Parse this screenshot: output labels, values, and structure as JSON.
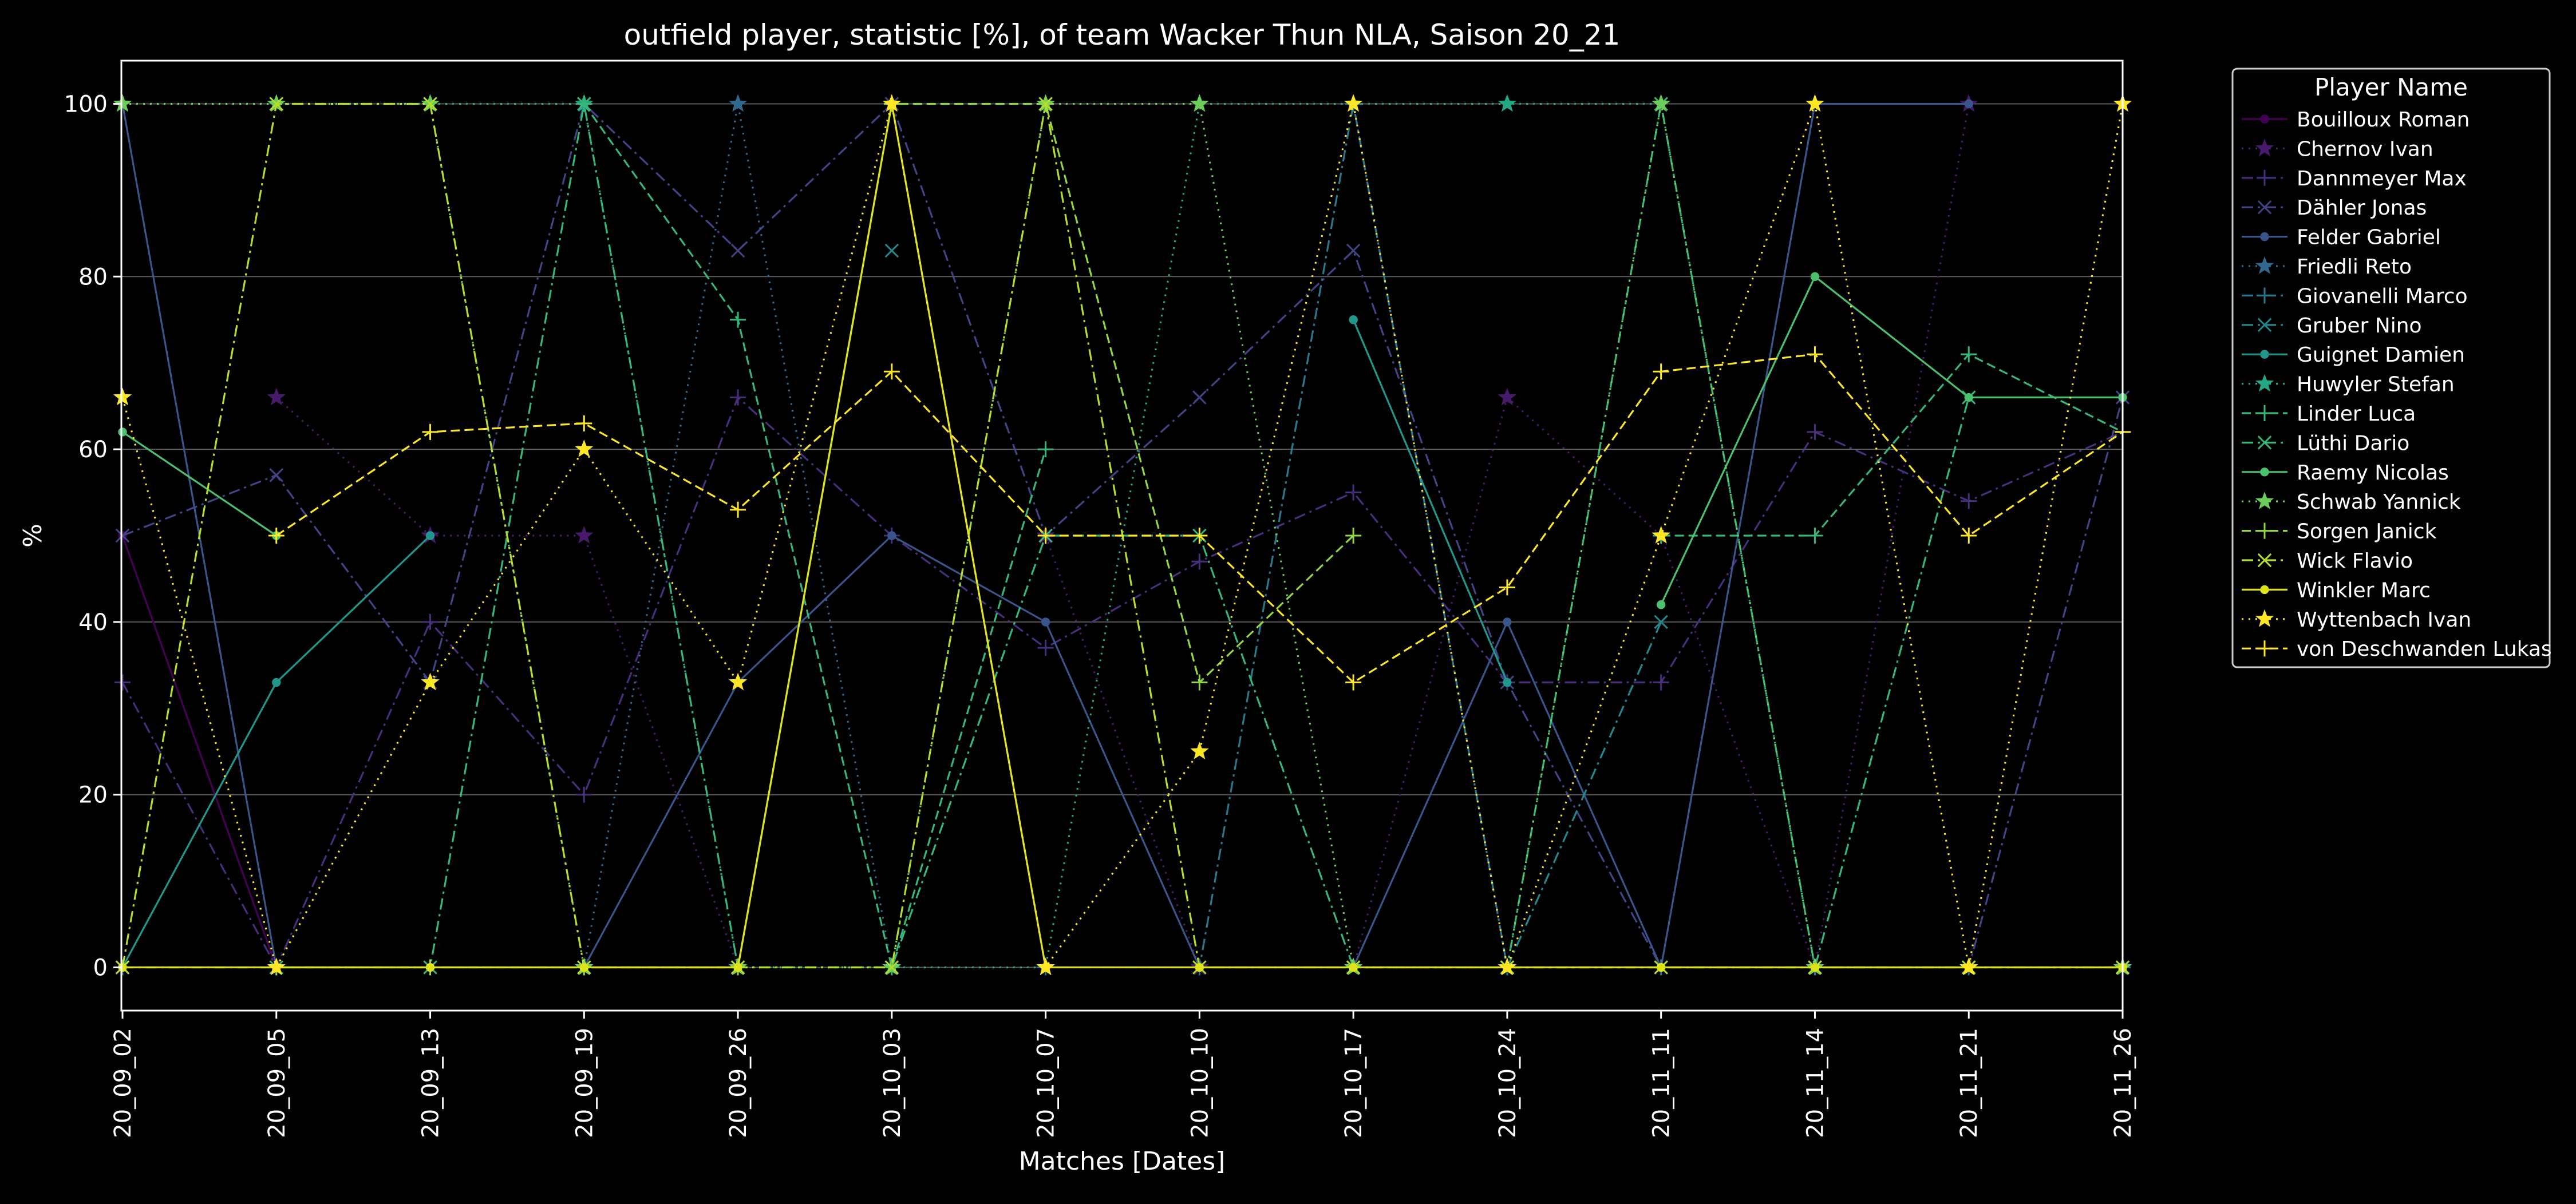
{
  "chart_data": {
    "type": "line",
    "title": "outfield player, statistic [%], of team Wacker Thun NLA, Saison 20_21",
    "xlabel": "Matches [Dates]",
    "ylabel": "%",
    "ylim": [
      -5,
      105
    ],
    "yticks": [
      0,
      20,
      40,
      60,
      80,
      100
    ],
    "grid": "horizontal",
    "legend_placement": "outside-right",
    "legend_title": "Player Name",
    "categories": [
      "20_09_02",
      "20_09_05",
      "20_09_13",
      "20_09_19",
      "20_09_26",
      "20_10_03",
      "20_10_07",
      "20_10_10",
      "20_10_17",
      "20_10_24",
      "20_11_11",
      "20_11_14",
      "20_11_21",
      "20_11_26"
    ],
    "series": [
      {
        "name": "Bouilloux Roman",
        "color": "#440154",
        "marker": "circle",
        "dash": "solid",
        "values": [
          50,
          0,
          null,
          null,
          null,
          null,
          null,
          null,
          null,
          null,
          null,
          null,
          null,
          null
        ]
      },
      {
        "name": "Chernov Ivan",
        "color": "#481a6c",
        "marker": "star",
        "dash": "dotted",
        "values": [
          null,
          66,
          50,
          50,
          0,
          null,
          50,
          0,
          0,
          66,
          50,
          0,
          100,
          null
        ]
      },
      {
        "name": "Dannmeyer Max",
        "color": "#472f7d",
        "marker": "plus",
        "dash": "dashdot",
        "values": [
          33,
          0,
          40,
          20,
          66,
          50,
          37,
          47,
          55,
          33,
          33,
          62,
          54,
          62
        ]
      },
      {
        "name": "Dähler Jonas",
        "color": "#414487",
        "marker": "x",
        "dash": "dashdot",
        "values": [
          50,
          57,
          33,
          100,
          83,
          100,
          50,
          66,
          83,
          33,
          0,
          0,
          0,
          66
        ]
      },
      {
        "name": "Felder Gabriel",
        "color": "#39568c",
        "marker": "circle",
        "dash": "solid",
        "values": [
          100,
          0,
          0,
          0,
          33,
          50,
          40,
          0,
          0,
          40,
          0,
          100,
          100,
          null
        ]
      },
      {
        "name": "Friedli Reto",
        "color": "#31688e",
        "marker": "star",
        "dash": "dotted",
        "values": [
          null,
          null,
          null,
          0,
          100,
          0,
          null,
          null,
          null,
          null,
          null,
          null,
          null,
          null
        ]
      },
      {
        "name": "Giovanelli Marco",
        "color": "#2a788e",
        "marker": "plus",
        "dash": "dashdot",
        "values": [
          0,
          0,
          0,
          0,
          0,
          100,
          0,
          0,
          100,
          0,
          0,
          0,
          0,
          0
        ]
      },
      {
        "name": "Gruber Nino",
        "color": "#23888e",
        "marker": "x",
        "dash": "dashdot",
        "values": [
          null,
          null,
          null,
          null,
          null,
          83,
          null,
          null,
          null,
          0,
          40,
          null,
          null,
          null
        ]
      },
      {
        "name": "Guignet Damien",
        "color": "#1f988b",
        "marker": "circle",
        "dash": "solid",
        "values": [
          0,
          33,
          50,
          null,
          null,
          null,
          null,
          null,
          75,
          33,
          null,
          null,
          null,
          null
        ]
      },
      {
        "name": "Huwyler Stefan",
        "color": "#22a884",
        "marker": "star",
        "dash": "dotted",
        "values": [
          100,
          100,
          100,
          100,
          0,
          0,
          0,
          100,
          100,
          100,
          100,
          0,
          0,
          0
        ]
      },
      {
        "name": "Linder Luca",
        "color": "#35b779",
        "marker": "plus",
        "dash": "dashed",
        "values": [
          null,
          null,
          null,
          100,
          75,
          0,
          60,
          null,
          null,
          null,
          50,
          50,
          71,
          62
        ]
      },
      {
        "name": "Lüthi Dario",
        "color": "#35b779",
        "marker": "x",
        "dash": "dashdot",
        "values": [
          0,
          0,
          0,
          100,
          0,
          0,
          50,
          50,
          0,
          0,
          100,
          0,
          66,
          null
        ]
      },
      {
        "name": "Raemy Nicolas",
        "color": "#4ac16d",
        "marker": "circle",
        "dash": "solid",
        "values": [
          62,
          50,
          null,
          null,
          null,
          null,
          null,
          null,
          null,
          null,
          42,
          80,
          66,
          66
        ]
      },
      {
        "name": "Schwab Yannick",
        "color": "#6ccd5a",
        "marker": "star",
        "dash": "dotted",
        "values": [
          100,
          100,
          100,
          0,
          0,
          0,
          100,
          100,
          0,
          0,
          100,
          0,
          0,
          0
        ]
      },
      {
        "name": "Sorgen Janick",
        "color": "#90d743",
        "marker": "plus",
        "dash": "dashed",
        "values": [
          null,
          0,
          0,
          0,
          0,
          100,
          100,
          33,
          50,
          null,
          null,
          null,
          null,
          null
        ]
      },
      {
        "name": "Wick Flavio",
        "color": "#b5de2b",
        "marker": "x",
        "dash": "dashdot",
        "values": [
          0,
          100,
          100,
          0,
          0,
          0,
          100,
          0,
          0,
          0,
          0,
          0,
          0,
          0
        ]
      },
      {
        "name": "Winkler Marc",
        "color": "#dde318",
        "marker": "circle",
        "dash": "solid",
        "values": [
          0,
          0,
          0,
          0,
          0,
          100,
          0,
          0,
          0,
          0,
          0,
          0,
          0,
          0
        ]
      },
      {
        "name": "Wyttenbach Ivan",
        "color": "#fde725",
        "marker": "star",
        "dash": "dotted",
        "values": [
          66,
          0,
          33,
          60,
          33,
          100,
          0,
          25,
          100,
          0,
          50,
          100,
          0,
          100
        ]
      },
      {
        "name": "von Deschwanden Lukas",
        "color": "#fde725",
        "marker": "plus",
        "dash": "dashed",
        "values": [
          null,
          50,
          62,
          63,
          53,
          69,
          50,
          50,
          33,
          44,
          69,
          71,
          50,
          62
        ]
      }
    ]
  }
}
